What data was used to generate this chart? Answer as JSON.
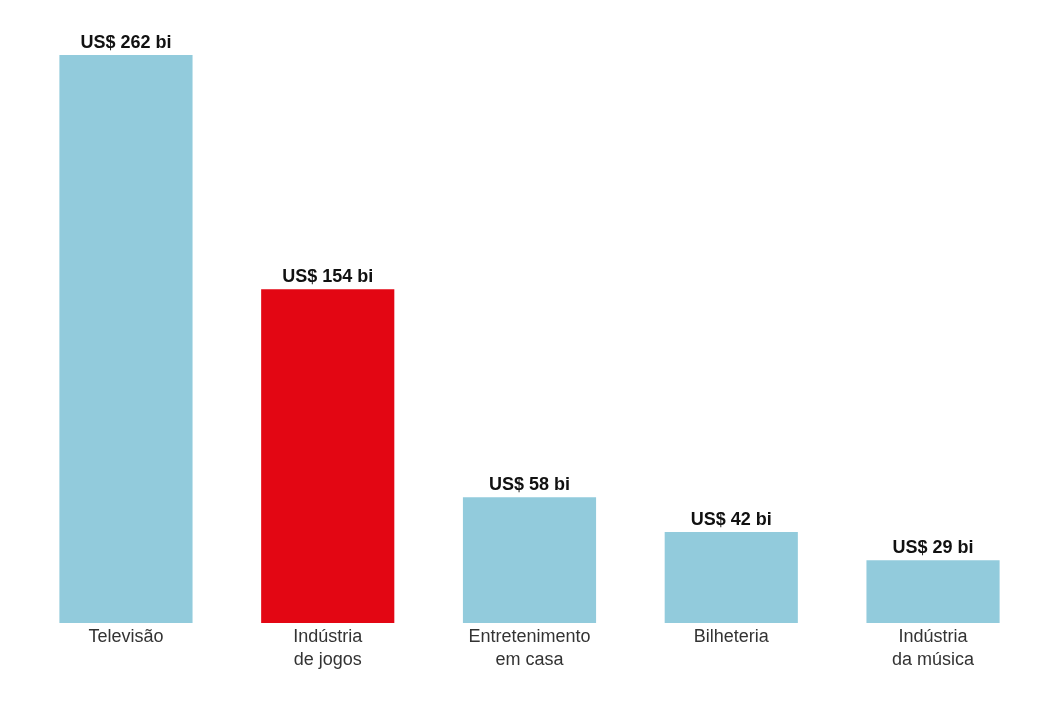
{
  "chart_data": {
    "type": "bar",
    "categories": [
      "Televisão",
      "Indústria\nde jogos",
      "Entretenimento\nem casa",
      "Bilheteria",
      "Indústria\nda música"
    ],
    "values": [
      262,
      154,
      58,
      42,
      29
    ],
    "colors": [
      "#92cbdc",
      "#e30613",
      "#92cbdc",
      "#92cbdc",
      "#92cbdc"
    ],
    "value_labels": [
      "US$ 262 bi",
      "US$ 154 bi",
      "US$ 58 bi",
      "US$ 42 bi",
      "US$ 29 bi"
    ]
  }
}
